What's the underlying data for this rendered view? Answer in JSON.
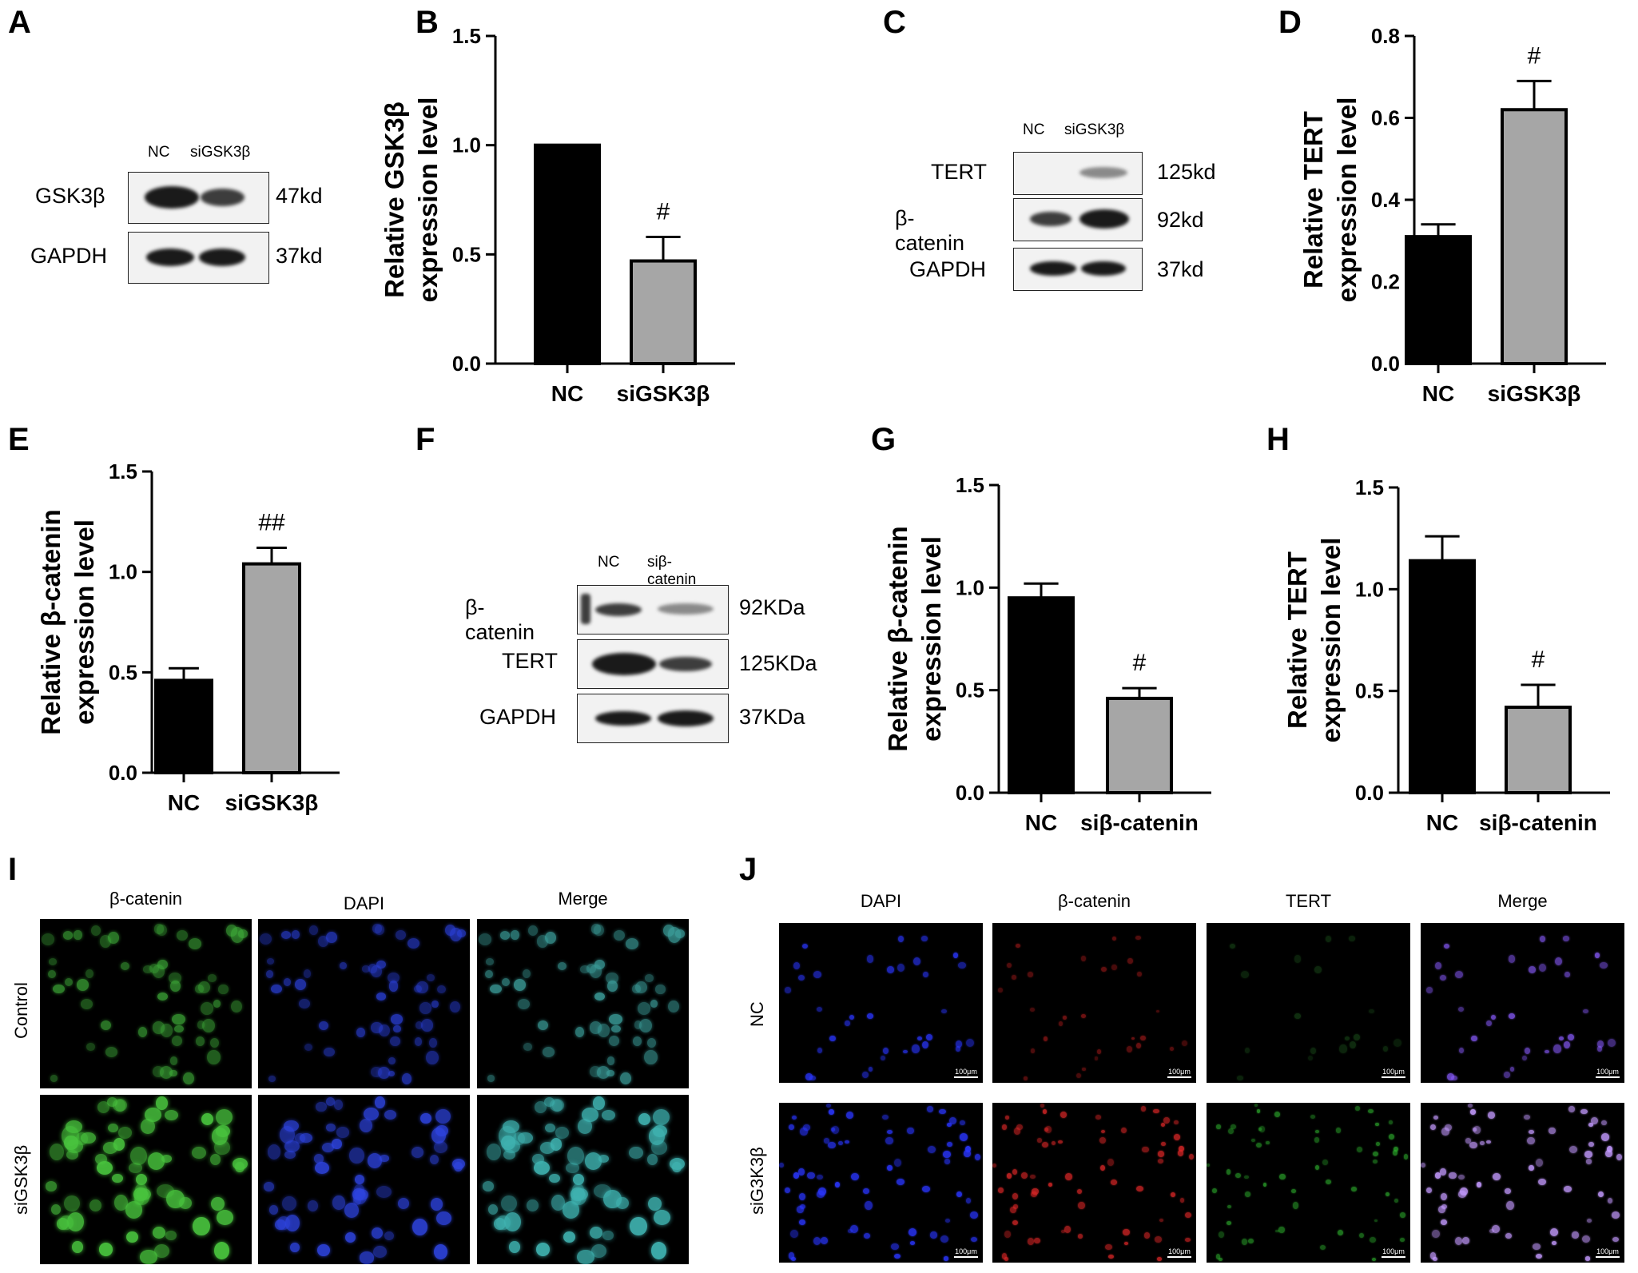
{
  "panels": {
    "A": {
      "letter": "A",
      "lanes": [
        "NC",
        "siGSK3β"
      ],
      "rows": [
        {
          "label": "GSK3β",
          "kd": "47kd"
        },
        {
          "label": "GAPDH",
          "kd": "37kd"
        }
      ]
    },
    "C": {
      "letter": "C",
      "lanes": [
        "NC",
        "siGSK3β"
      ],
      "rows": [
        {
          "label": "TERT",
          "kd": "125kd"
        },
        {
          "label": "β-catenin",
          "kd": "92kd"
        },
        {
          "label": "GAPDH",
          "kd": "37kd"
        }
      ]
    },
    "F": {
      "letter": "F",
      "lanes": [
        "NC",
        "siβ-catenin"
      ],
      "rows": [
        {
          "label": "β-catenin",
          "kd": "92KDa"
        },
        {
          "label": "TERT",
          "kd": "125KDa"
        },
        {
          "label": "GAPDH",
          "kd": "37KDa"
        }
      ]
    },
    "I": {
      "letter": "I",
      "columns": [
        "β-catenin",
        "DAPI",
        "Merge"
      ],
      "rows": [
        "Control",
        "siGSK3β"
      ]
    },
    "J": {
      "letter": "J",
      "columns": [
        "DAPI",
        "β-catenin",
        "TERT",
        "Merge"
      ],
      "rows": [
        "NC",
        "siG3K3β"
      ],
      "scale_label": "100μm"
    }
  },
  "chart_data": [
    {
      "id": "B",
      "letter": "B",
      "type": "bar",
      "categories": [
        "NC",
        "siGSK3β"
      ],
      "values": [
        1.0,
        0.47
      ],
      "errors": [
        0,
        0.11
      ],
      "significance": [
        "",
        "#"
      ],
      "ylabel_lines": [
        "Relative GSK3β",
        "expression level"
      ],
      "ylim": [
        0,
        1.5
      ],
      "yticks": [
        "0.0",
        "0.5",
        "1.0",
        "1.5"
      ],
      "colors": [
        "#000000",
        "#a6a6a6"
      ]
    },
    {
      "id": "D",
      "letter": "D",
      "type": "bar",
      "categories": [
        "NC",
        "siGSK3β"
      ],
      "values": [
        0.31,
        0.62
      ],
      "errors": [
        0.03,
        0.07
      ],
      "significance": [
        "",
        "#"
      ],
      "ylabel_lines": [
        "Relative TERT",
        "expression level"
      ],
      "ylim": [
        0,
        0.8
      ],
      "yticks": [
        "0.0",
        "0.2",
        "0.4",
        "0.6",
        "0.8"
      ],
      "colors": [
        "#000000",
        "#a6a6a6"
      ]
    },
    {
      "id": "E",
      "letter": "E",
      "type": "bar",
      "categories": [
        "NC",
        "siGSK3β"
      ],
      "values": [
        0.46,
        1.04
      ],
      "errors": [
        0.06,
        0.08
      ],
      "significance": [
        "",
        "##"
      ],
      "ylabel_lines": [
        "Relative β-catenin",
        "expression level"
      ],
      "ylim": [
        0,
        1.5
      ],
      "yticks": [
        "0.0",
        "0.5",
        "1.0",
        "1.5"
      ],
      "colors": [
        "#000000",
        "#a6a6a6"
      ]
    },
    {
      "id": "G",
      "letter": "G",
      "type": "bar",
      "categories": [
        "NC",
        "siβ-catenin"
      ],
      "values": [
        0.95,
        0.46
      ],
      "errors": [
        0.07,
        0.05
      ],
      "significance": [
        "",
        "#"
      ],
      "ylabel_lines": [
        "Relative β-catenin",
        "expression level"
      ],
      "ylim": [
        0,
        1.5
      ],
      "yticks": [
        "0.0",
        "0.5",
        "1.0",
        "1.5"
      ],
      "colors": [
        "#000000",
        "#a6a6a6"
      ]
    },
    {
      "id": "H",
      "letter": "H",
      "type": "bar",
      "categories": [
        "NC",
        "siβ-catenin"
      ],
      "values": [
        1.14,
        0.42
      ],
      "errors": [
        0.12,
        0.11
      ],
      "significance": [
        "",
        "#"
      ],
      "ylabel_lines": [
        "Relative TERT",
        "expression level"
      ],
      "ylim": [
        0,
        1.5
      ],
      "yticks": [
        "0.0",
        "0.5",
        "1.0",
        "1.5"
      ],
      "colors": [
        "#000000",
        "#a6a6a6"
      ]
    }
  ]
}
